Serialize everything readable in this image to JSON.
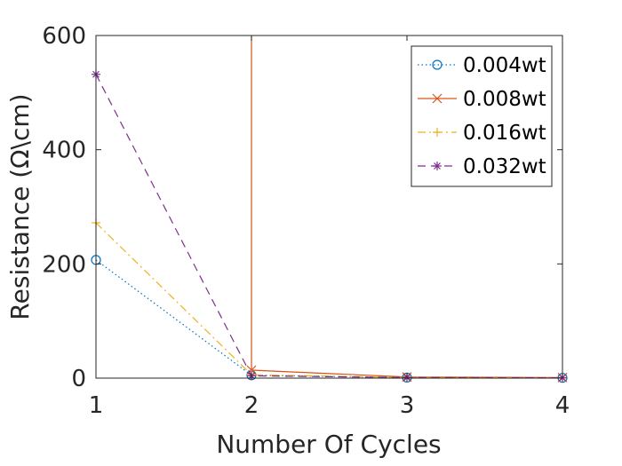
{
  "chart_data": {
    "type": "line",
    "xlabel": "Number Of Cycles",
    "ylabel": "Resistance (Ω\\cm)",
    "x": [
      1,
      2,
      3,
      4
    ],
    "xlim": [
      1,
      4
    ],
    "ylim": [
      0,
      600
    ],
    "xticks": [
      "1",
      "2",
      "3",
      "4"
    ],
    "yticks": [
      "0",
      "200",
      "400",
      "600"
    ],
    "grid": false,
    "legend_position": "top-right",
    "series": [
      {
        "name": "0.004wt",
        "values": [
          207,
          5,
          1,
          0.5
        ],
        "color": "#0072BD",
        "line": "dotted",
        "marker": "circle"
      },
      {
        "name": "0.008wt",
        "values": [
          null,
          14,
          2,
          1
        ],
        "vertical_spike_at_x": 2,
        "color": "#D95319",
        "line": "solid",
        "marker": "x"
      },
      {
        "name": "0.016wt",
        "values": [
          272,
          6,
          1,
          0.5
        ],
        "color": "#EDB120",
        "line": "dashdot",
        "marker": "plus"
      },
      {
        "name": "0.032wt",
        "values": [
          532,
          4,
          1,
          0.5
        ],
        "color": "#7E2F8E",
        "line": "dashed",
        "marker": "star"
      }
    ]
  }
}
